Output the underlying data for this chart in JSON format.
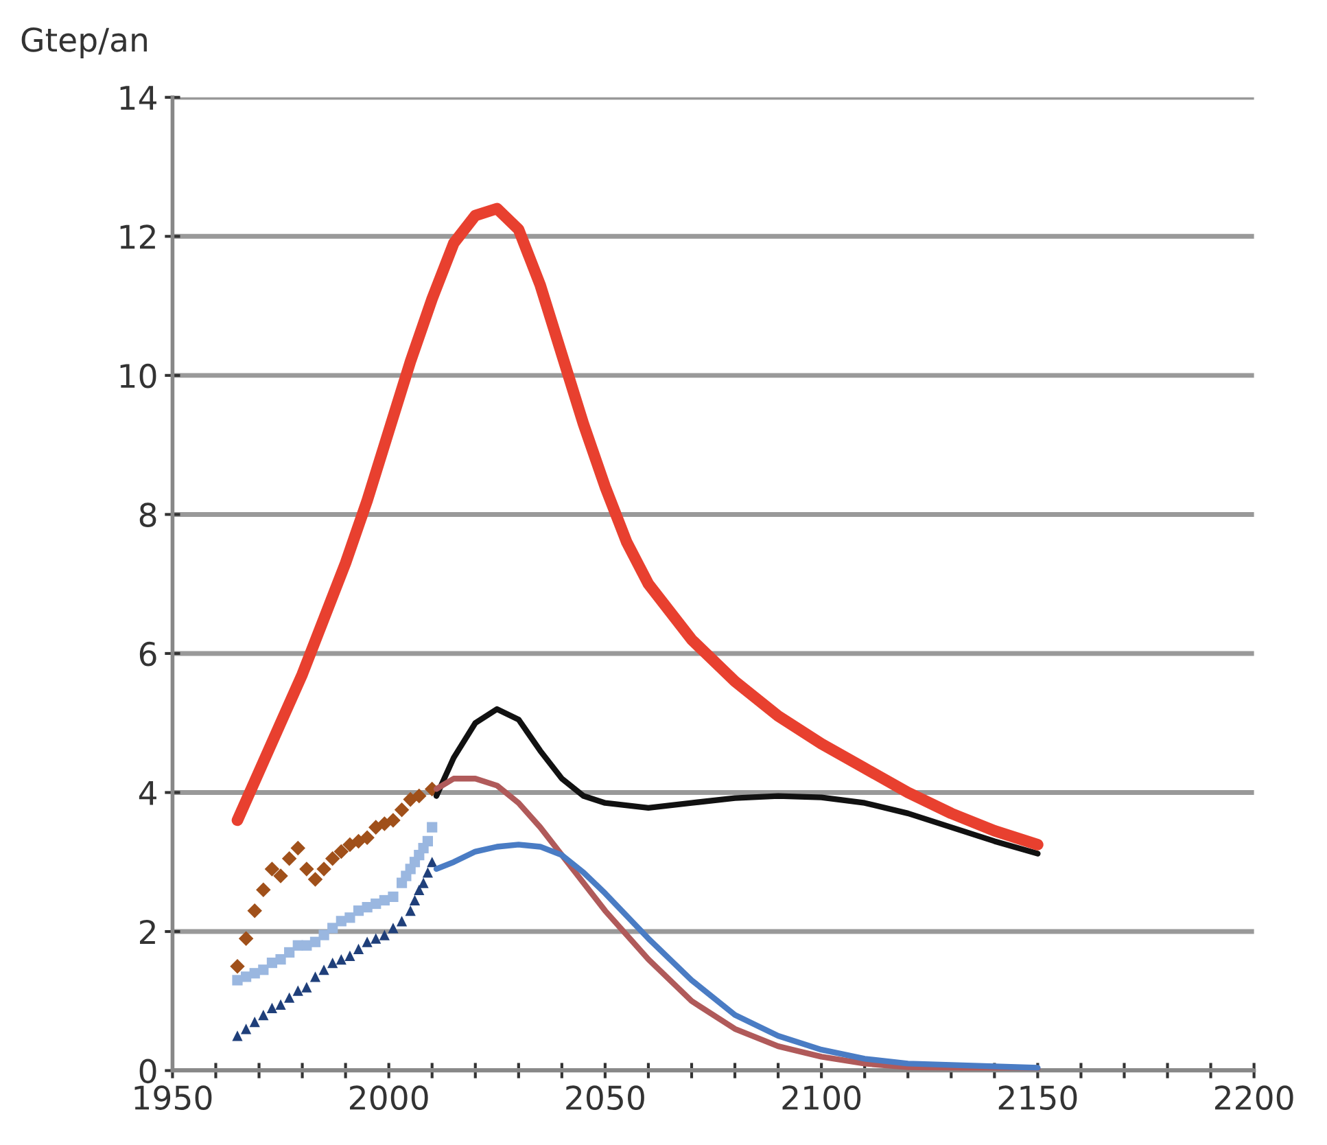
{
  "chart_data": {
    "type": "line",
    "ylabel": "Gtep/an",
    "xlim": [
      1950,
      2200
    ],
    "ylim": [
      0,
      14
    ],
    "xticks": [
      1950,
      {
        "value": 1960,
        "label": null
      },
      {
        "value": 1970,
        "label": null
      },
      {
        "value": 1980,
        "label": null
      },
      {
        "value": 1990,
        "label": null
      },
      2000,
      {
        "value": 2010,
        "label": null
      },
      {
        "value": 2020,
        "label": null
      },
      {
        "value": 2030,
        "label": null
      },
      {
        "value": 2040,
        "label": null
      },
      2050,
      {
        "value": 2060,
        "label": null
      },
      {
        "value": 2070,
        "label": null
      },
      {
        "value": 2080,
        "label": null
      },
      {
        "value": 2090,
        "label": null
      },
      2100,
      {
        "value": 2110,
        "label": null
      },
      {
        "value": 2120,
        "label": null
      },
      {
        "value": 2130,
        "label": null
      },
      {
        "value": 2140,
        "label": null
      },
      2150,
      {
        "value": 2160,
        "label": null
      },
      {
        "value": 2170,
        "label": null
      },
      {
        "value": 2180,
        "label": null
      },
      {
        "value": 2190,
        "label": null
      },
      2200
    ],
    "yticks": [
      0,
      2,
      4,
      6,
      8,
      10,
      12,
      14
    ],
    "grid": "y",
    "legend": false,
    "series": [
      {
        "color": "#e8402f",
        "x": [
          1965,
          1970,
          1975,
          1980,
          1985,
          1990,
          1995,
          2000,
          2005,
          2010,
          2015,
          2020,
          2025,
          2030,
          2035,
          2040,
          2045,
          2050,
          2055,
          2060,
          2070,
          2080,
          2090,
          2100,
          2110,
          2120,
          2130,
          2140,
          2150
        ],
        "values": [
          3.6,
          4.3,
          5.0,
          5.7,
          6.5,
          7.3,
          8.2,
          9.2,
          10.2,
          11.1,
          11.9,
          12.3,
          12.4,
          12.1,
          11.3,
          10.3,
          9.3,
          8.4,
          7.6,
          7.0,
          6.2,
          5.6,
          5.1,
          4.7,
          4.35,
          4.0,
          3.7,
          3.45,
          3.25
        ]
      },
      {
        "color": "#111111",
        "x": [
          2011,
          2015,
          2020,
          2025,
          2030,
          2035,
          2040,
          2045,
          2050,
          2060,
          2070,
          2080,
          2090,
          2100,
          2110,
          2120,
          2130,
          2140,
          2150
        ],
        "values": [
          3.95,
          4.5,
          5.0,
          5.2,
          5.05,
          4.6,
          4.2,
          3.95,
          3.85,
          3.78,
          3.85,
          3.92,
          3.95,
          3.93,
          3.85,
          3.7,
          3.5,
          3.3,
          3.12
        ]
      },
      {
        "color": "#b05a5a",
        "x": [
          2011,
          2015,
          2020,
          2025,
          2030,
          2035,
          2040,
          2045,
          2050,
          2060,
          2070,
          2080,
          2090,
          2100,
          2110,
          2120,
          2150
        ],
        "values": [
          4.05,
          4.2,
          4.2,
          4.1,
          3.85,
          3.5,
          3.1,
          2.7,
          2.3,
          1.6,
          1.0,
          0.6,
          0.35,
          0.2,
          0.1,
          0.05,
          0.02
        ]
      },
      {
        "color": "#4a7cc4",
        "x": [
          2011,
          2015,
          2020,
          2025,
          2030,
          2035,
          2040,
          2045,
          2050,
          2060,
          2070,
          2080,
          2090,
          2100,
          2110,
          2120,
          2150
        ],
        "values": [
          2.9,
          3.0,
          3.15,
          3.22,
          3.25,
          3.22,
          3.1,
          2.85,
          2.55,
          1.9,
          1.3,
          0.8,
          0.5,
          0.3,
          0.17,
          0.1,
          0.04
        ]
      },
      {
        "type": "scatter",
        "marker": "diamond",
        "color": "#a0501a",
        "x": [
          1965,
          1967,
          1969,
          1971,
          1973,
          1975,
          1977,
          1979,
          1981,
          1983,
          1985,
          1987,
          1989,
          1991,
          1993,
          1995,
          1997,
          1999,
          2001,
          2003,
          2005,
          2007,
          2010
        ],
        "values": [
          1.5,
          1.9,
          2.3,
          2.6,
          2.9,
          2.8,
          3.05,
          3.2,
          2.9,
          2.75,
          2.9,
          3.05,
          3.15,
          3.25,
          3.3,
          3.35,
          3.5,
          3.55,
          3.6,
          3.75,
          3.9,
          3.95,
          4.05
        ]
      },
      {
        "type": "scatter",
        "marker": "square",
        "color": "#9ab7e0",
        "x": [
          1965,
          1967,
          1969,
          1971,
          1973,
          1975,
          1977,
          1979,
          1981,
          1983,
          1985,
          1987,
          1989,
          1991,
          1993,
          1995,
          1997,
          1999,
          2001,
          2003,
          2004,
          2005,
          2006,
          2007,
          2008,
          2009,
          2010
        ],
        "values": [
          1.3,
          1.35,
          1.4,
          1.45,
          1.55,
          1.6,
          1.7,
          1.8,
          1.8,
          1.85,
          1.95,
          2.05,
          2.15,
          2.2,
          2.3,
          2.35,
          2.4,
          2.45,
          2.5,
          2.7,
          2.8,
          2.9,
          3.0,
          3.1,
          3.2,
          3.3,
          3.5
        ]
      },
      {
        "type": "scatter",
        "marker": "triangle",
        "color": "#1f3f7a",
        "x": [
          1965,
          1967,
          1969,
          1971,
          1973,
          1975,
          1977,
          1979,
          1981,
          1983,
          1985,
          1987,
          1989,
          1991,
          1993,
          1995,
          1997,
          1999,
          2001,
          2003,
          2005,
          2006,
          2007,
          2008,
          2009,
          2010
        ],
        "values": [
          0.5,
          0.6,
          0.7,
          0.8,
          0.9,
          0.95,
          1.05,
          1.15,
          1.2,
          1.35,
          1.45,
          1.55,
          1.6,
          1.65,
          1.75,
          1.85,
          1.9,
          1.95,
          2.05,
          2.15,
          2.3,
          2.45,
          2.6,
          2.7,
          2.85,
          3.0
        ]
      }
    ]
  }
}
